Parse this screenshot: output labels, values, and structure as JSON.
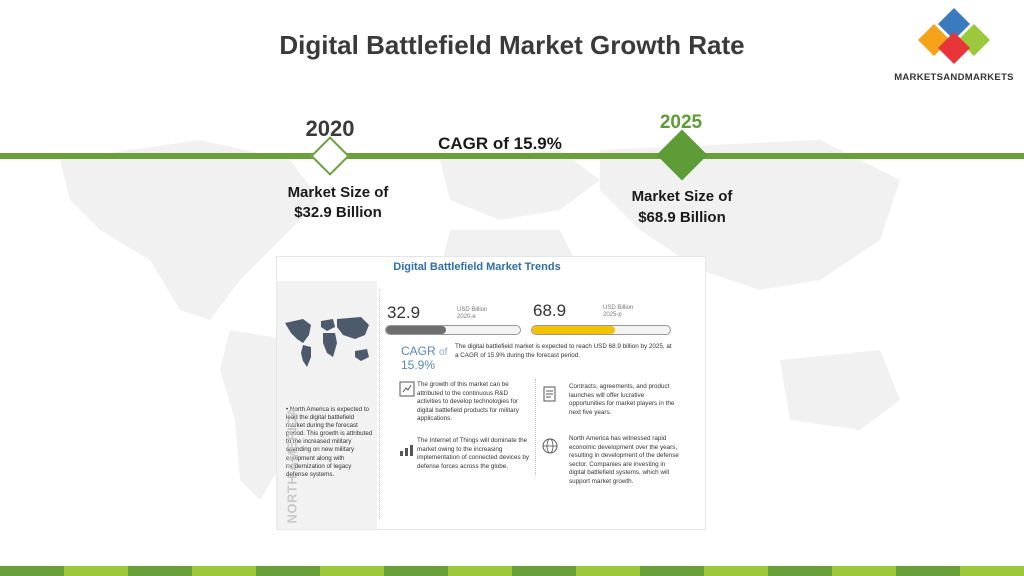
{
  "title": "Digital Battlefield Market Growth Rate",
  "logo": {
    "text": "MARKETSANDMARKETS",
    "colors": [
      "#3a7bbf",
      "#9cc93c",
      "#e8353a",
      "#f5a31a"
    ]
  },
  "timeline": {
    "year_start": "2020",
    "year_end": "2025",
    "cagr_label": "CAGR of 15.9%",
    "size_start_line1": "Market Size of",
    "size_start_line2": "$32.9 Billion",
    "size_end_line1": "Market Size of",
    "size_end_line2": "$68.9 Billion",
    "accent": "#6aa03c"
  },
  "infographic": {
    "title": "Digital Battlefield Market Trends",
    "value_start": "32.9",
    "unit_start": "USD Billion",
    "year_start": "2020-e",
    "fill_start": 0.45,
    "value_end": "68.9",
    "unit_end": "USD Billion",
    "year_end": "2025-p",
    "fill_end": 0.6,
    "cagr_label": "CAGR",
    "cagr_of": "of",
    "cagr_value": "15.9%",
    "description": "The digital battlefield market is expected to reach USD 68.9 billion by 2025, at a CAGR of 15.9% during the forecast period.",
    "left_bullet": "• North America is expected to lead the digital battlefield market during the forecast period. This growth is attributed to the increased military spending on new military equipment along with modernization of legacy defense systems.",
    "region_label": "NORTH AMERICA",
    "point1": "The growth of this market can be attributed to the continuous R&D activities to develop technologies for digital battlefield products for military applications.",
    "point2": "The Internet of Things will dominate the market owing to the increasing implementation of connected devices by defense forces across the globe.",
    "point3": "Contracts, agreements, and product launches will offer lucrative opportunities for market players in the next five years.",
    "point4": "North America has witnessed rapid economic development over the years, resulting in development of the defense sector. Companies are investing in digital battlefield systems, which will support market growth.",
    "colors": {
      "bar_start": "#6e6e6e",
      "bar_end": "#f2c300",
      "title": "#2d6fa8"
    }
  },
  "footer_colors": [
    "#6aa03c",
    "#9cc93c",
    "#6aa03c",
    "#9cc93c",
    "#6aa03c",
    "#9cc93c",
    "#6aa03c",
    "#9cc93c",
    "#6aa03c",
    "#9cc93c",
    "#6aa03c",
    "#9cc93c",
    "#6aa03c",
    "#9cc93c",
    "#6aa03c",
    "#9cc93c"
  ]
}
